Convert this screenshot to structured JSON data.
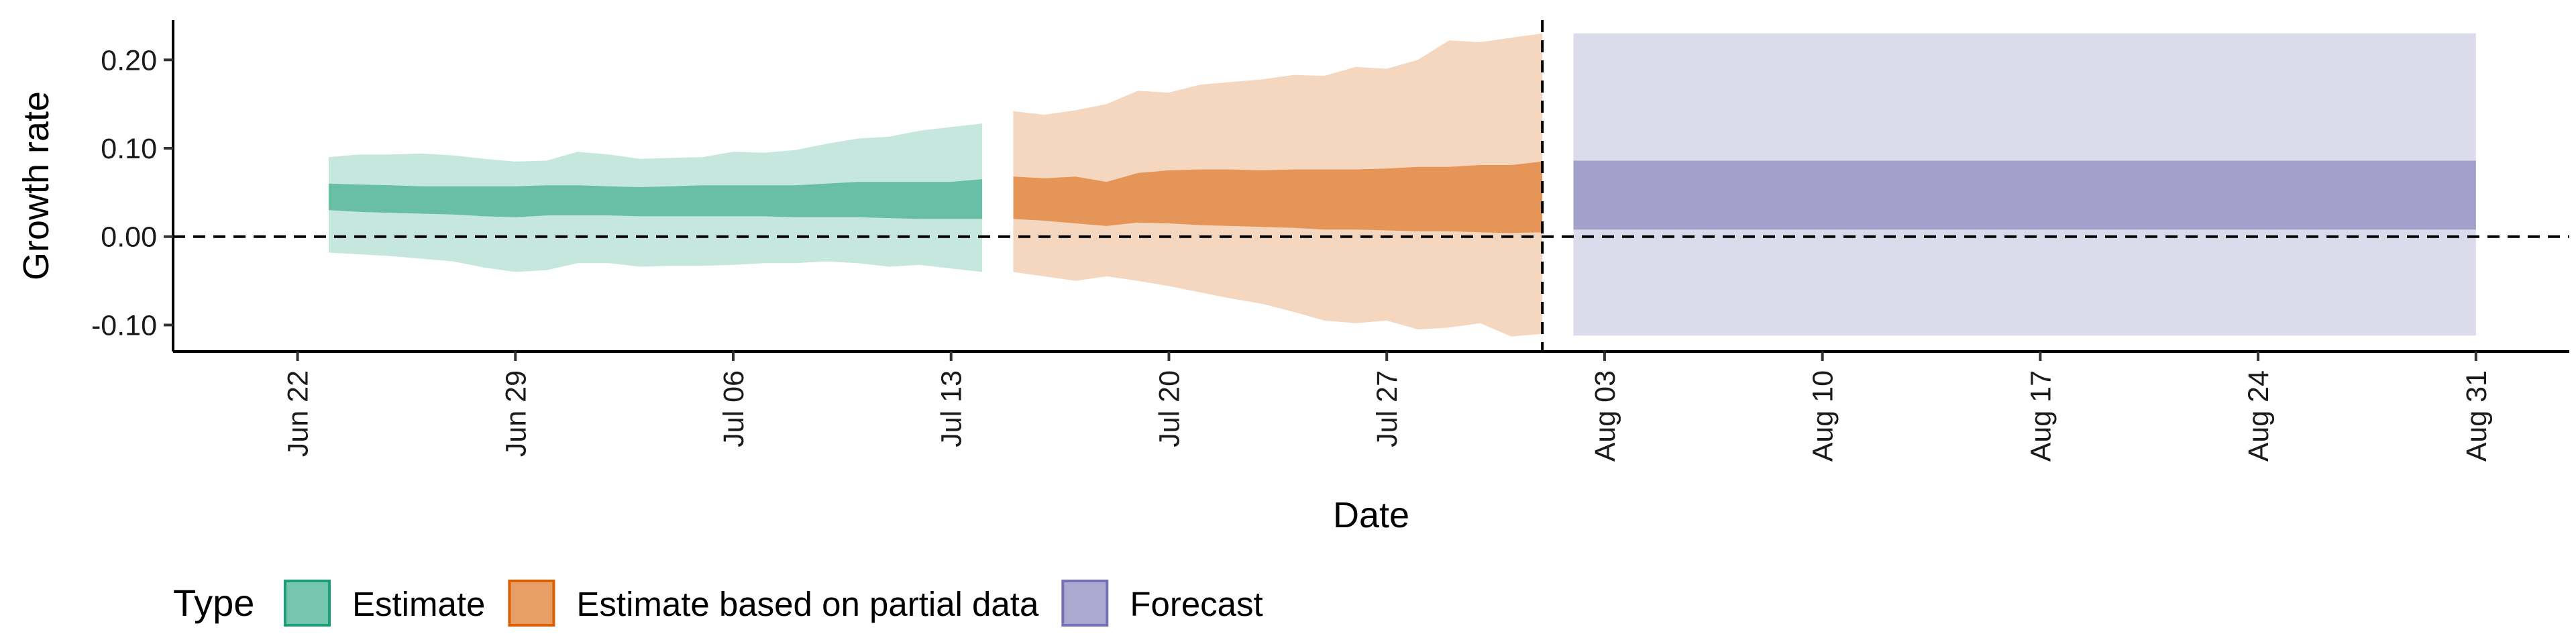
{
  "chart_data": {
    "type": "area",
    "xlabel": "Date",
    "ylabel": "Growth rate",
    "ylim": [
      -0.13,
      0.245
    ],
    "xlim": [
      "2022-06-18",
      "2022-09-03"
    ],
    "y_ticks": [
      {
        "value": -0.1,
        "label": "-0.10"
      },
      {
        "value": 0.0,
        "label": "0.00"
      },
      {
        "value": 0.1,
        "label": "0.10"
      },
      {
        "value": 0.2,
        "label": "0.20"
      }
    ],
    "x_ticks": [
      {
        "date": "2022-06-22",
        "label": "Jun 22"
      },
      {
        "date": "2022-06-29",
        "label": "Jun 29"
      },
      {
        "date": "2022-07-06",
        "label": "Jul 06"
      },
      {
        "date": "2022-07-13",
        "label": "Jul 13"
      },
      {
        "date": "2022-07-20",
        "label": "Jul 20"
      },
      {
        "date": "2022-07-27",
        "label": "Jul 27"
      },
      {
        "date": "2022-08-03",
        "label": "Aug 03"
      },
      {
        "date": "2022-08-10",
        "label": "Aug 10"
      },
      {
        "date": "2022-08-17",
        "label": "Aug 17"
      },
      {
        "date": "2022-08-24",
        "label": "Aug 24"
      },
      {
        "date": "2022-08-31",
        "label": "Aug 31"
      }
    ],
    "hline": 0,
    "vline": "2022-08-01",
    "legend": {
      "title": "Type",
      "position": "bottom"
    },
    "series": [
      {
        "name": "Estimate",
        "color": "#1b9e77",
        "x": [
          "2022-06-23",
          "2022-06-24",
          "2022-06-25",
          "2022-06-26",
          "2022-06-27",
          "2022-06-28",
          "2022-06-29",
          "2022-06-30",
          "2022-07-01",
          "2022-07-02",
          "2022-07-03",
          "2022-07-04",
          "2022-07-05",
          "2022-07-06",
          "2022-07-07",
          "2022-07-08",
          "2022-07-09",
          "2022-07-10",
          "2022-07-11",
          "2022-07-12",
          "2022-07-13",
          "2022-07-14"
        ],
        "lower90": [
          -0.018,
          -0.02,
          -0.022,
          -0.025,
          -0.028,
          -0.035,
          -0.04,
          -0.038,
          -0.03,
          -0.03,
          -0.034,
          -0.033,
          -0.033,
          -0.032,
          -0.03,
          -0.03,
          -0.028,
          -0.03,
          -0.034,
          -0.032,
          -0.036,
          -0.04
        ],
        "lower50": [
          0.03,
          0.028,
          0.027,
          0.026,
          0.025,
          0.023,
          0.022,
          0.024,
          0.024,
          0.024,
          0.023,
          0.023,
          0.023,
          0.023,
          0.023,
          0.022,
          0.022,
          0.022,
          0.021,
          0.02,
          0.02,
          0.02
        ],
        "upper50": [
          0.06,
          0.059,
          0.058,
          0.057,
          0.057,
          0.057,
          0.057,
          0.058,
          0.058,
          0.057,
          0.056,
          0.057,
          0.058,
          0.058,
          0.058,
          0.058,
          0.06,
          0.062,
          0.062,
          0.062,
          0.062,
          0.065
        ],
        "upper90": [
          0.09,
          0.093,
          0.093,
          0.094,
          0.092,
          0.088,
          0.085,
          0.086,
          0.096,
          0.093,
          0.088,
          0.089,
          0.09,
          0.096,
          0.095,
          0.098,
          0.105,
          0.111,
          0.113,
          0.12,
          0.124,
          0.128
        ]
      },
      {
        "name": "Estimate based on partial data",
        "color": "#d95f02",
        "x": [
          "2022-07-15",
          "2022-07-16",
          "2022-07-17",
          "2022-07-18",
          "2022-07-19",
          "2022-07-20",
          "2022-07-21",
          "2022-07-22",
          "2022-07-23",
          "2022-07-24",
          "2022-07-25",
          "2022-07-26",
          "2022-07-27",
          "2022-07-28",
          "2022-07-29",
          "2022-07-30",
          "2022-07-31",
          "2022-08-01"
        ],
        "lower90": [
          -0.04,
          -0.045,
          -0.05,
          -0.045,
          -0.05,
          -0.056,
          -0.063,
          -0.07,
          -0.076,
          -0.085,
          -0.095,
          -0.098,
          -0.095,
          -0.105,
          -0.103,
          -0.098,
          -0.113,
          -0.11
        ],
        "lower50": [
          0.02,
          0.018,
          0.015,
          0.012,
          0.016,
          0.015,
          0.013,
          0.012,
          0.011,
          0.01,
          0.008,
          0.008,
          0.007,
          0.006,
          0.006,
          0.005,
          0.004,
          0.005
        ],
        "upper50": [
          0.068,
          0.066,
          0.068,
          0.062,
          0.072,
          0.075,
          0.076,
          0.076,
          0.075,
          0.076,
          0.076,
          0.076,
          0.077,
          0.079,
          0.079,
          0.081,
          0.081,
          0.085
        ],
        "upper90": [
          0.142,
          0.138,
          0.143,
          0.15,
          0.165,
          0.163,
          0.172,
          0.175,
          0.178,
          0.183,
          0.182,
          0.192,
          0.19,
          0.2,
          0.222,
          0.22,
          0.225,
          0.23
        ]
      },
      {
        "name": "Forecast",
        "color": "#7570b3",
        "x": [
          "2022-08-02",
          "2022-08-31"
        ],
        "lower90": [
          -0.112,
          -0.112
        ],
        "lower50": [
          0.008,
          0.008
        ],
        "upper50": [
          0.086,
          0.086
        ],
        "upper90": [
          0.23,
          0.23
        ]
      }
    ]
  }
}
